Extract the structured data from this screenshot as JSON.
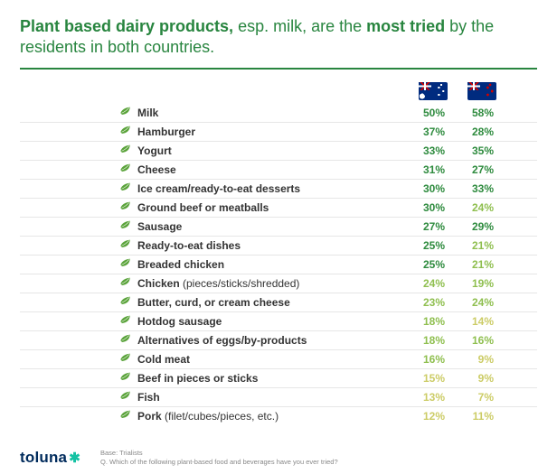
{
  "title_parts": [
    {
      "text": "Plant based dairy products, ",
      "bold": true
    },
    {
      "text": "esp. milk",
      "bold": false
    },
    {
      "text": ", are the ",
      "bold": false
    },
    {
      "text": "most tried",
      "bold": true
    },
    {
      "text": " by the residents in both countries.",
      "bold": false
    }
  ],
  "columns": [
    {
      "key": "au",
      "flag": "au",
      "name": "Australia"
    },
    {
      "key": "nz",
      "flag": "nz",
      "name": "New Zealand"
    }
  ],
  "leaf_color": "#5aa33a",
  "colors": {
    "title": "#28853f",
    "label_text": "#333333",
    "row_border": "#e6e6e6",
    "thresholds": [
      {
        "min": 0,
        "max": 15,
        "hex": "#cccc66"
      },
      {
        "min": 16,
        "max": 24,
        "hex": "#8fbf4f"
      },
      {
        "min": 25,
        "max": 100,
        "hex": "#2e8b3e"
      }
    ]
  },
  "rows": [
    {
      "label_bold": "Milk",
      "label_sub": "",
      "au": 50,
      "nz": 58
    },
    {
      "label_bold": "Hamburger",
      "label_sub": "",
      "au": 37,
      "nz": 28
    },
    {
      "label_bold": "Yogurt",
      "label_sub": "",
      "au": 33,
      "nz": 35
    },
    {
      "label_bold": "Cheese",
      "label_sub": "",
      "au": 31,
      "nz": 27
    },
    {
      "label_bold": "Ice cream/ready-to-eat desserts",
      "label_sub": "",
      "au": 30,
      "nz": 33
    },
    {
      "label_bold": "Ground beef or meatballs",
      "label_sub": "",
      "au": 30,
      "nz": 24
    },
    {
      "label_bold": "Sausage",
      "label_sub": "",
      "au": 27,
      "nz": 29
    },
    {
      "label_bold": "Ready-to-eat dishes",
      "label_sub": "",
      "au": 25,
      "nz": 21
    },
    {
      "label_bold": "Breaded chicken",
      "label_sub": "",
      "au": 25,
      "nz": 21
    },
    {
      "label_bold": "Chicken ",
      "label_sub": "(pieces/sticks/shredded)",
      "au": 24,
      "nz": 19
    },
    {
      "label_bold": "Butter, curd, or cream cheese",
      "label_sub": "",
      "au": 23,
      "nz": 24
    },
    {
      "label_bold": "Hotdog sausage",
      "label_sub": "",
      "au": 18,
      "nz": 14
    },
    {
      "label_bold": "Alternatives of eggs/by-products",
      "label_sub": "",
      "au": 18,
      "nz": 16
    },
    {
      "label_bold": "Cold meat",
      "label_sub": "",
      "au": 16,
      "nz": 9
    },
    {
      "label_bold": "Beef in pieces or sticks",
      "label_sub": "",
      "au": 15,
      "nz": 9
    },
    {
      "label_bold": "Fish",
      "label_sub": "",
      "au": 13,
      "nz": 7
    },
    {
      "label_bold": "Pork ",
      "label_sub": "(filet/cubes/pieces, etc.)",
      "au": 12,
      "nz": 11
    }
  ],
  "footer": {
    "logo_text": "toluna",
    "base": "Base: Trialists",
    "question": "Q. Which of the following plant-based food and beverages have you ever tried?"
  }
}
